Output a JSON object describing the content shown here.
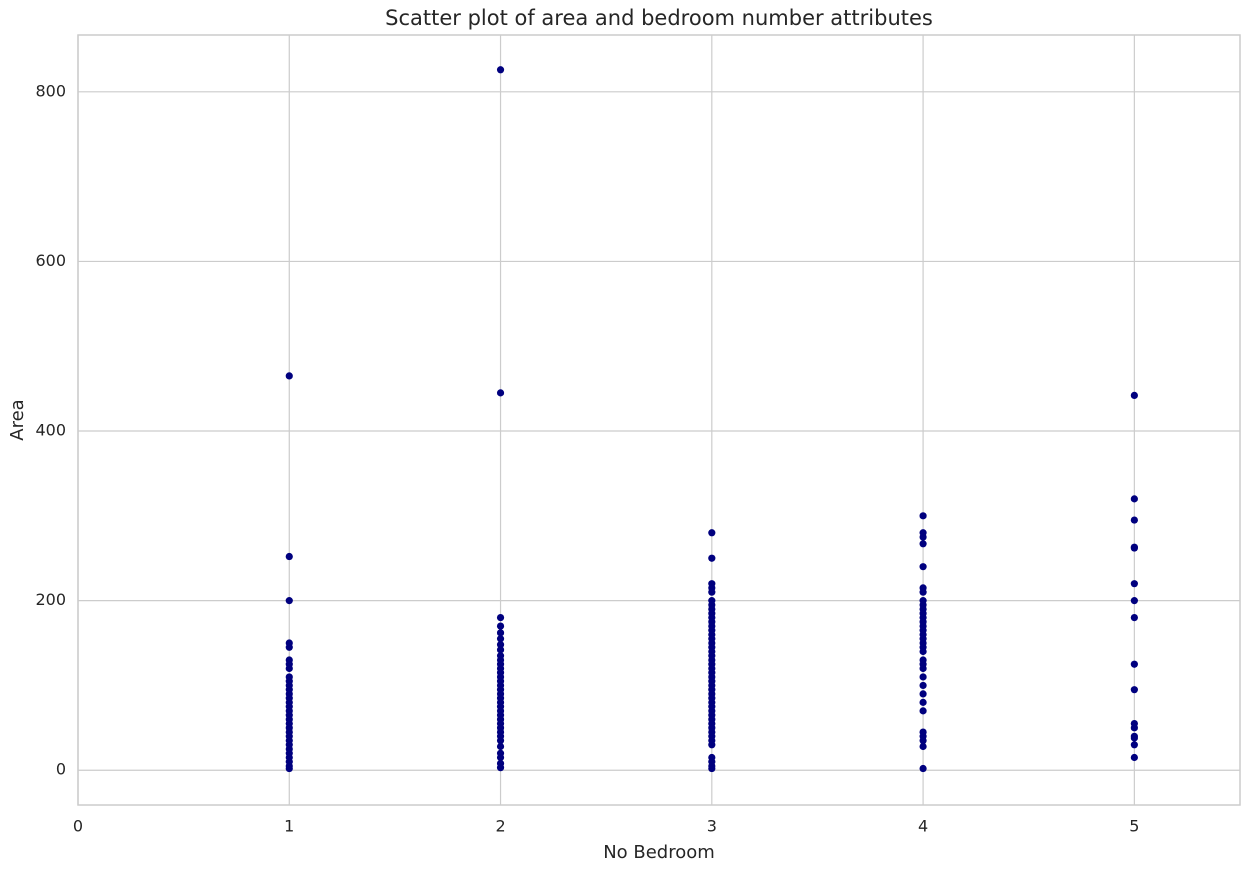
{
  "chart_data": {
    "type": "scatter",
    "title": "Scatter plot of area and bedroom number attributes",
    "x_label": "No Bedroom",
    "y_label": "Area",
    "color": "#00007f",
    "grid": true,
    "xlim": [
      0,
      5.5
    ],
    "ylim": [
      -41,
      867
    ],
    "xticks": [
      0,
      1,
      2,
      3,
      4,
      5
    ],
    "yticks": [
      0,
      200,
      400,
      600,
      800
    ],
    "x": [
      1,
      1,
      1,
      1,
      1,
      1,
      1,
      1,
      1,
      1,
      1,
      1,
      1,
      1,
      1,
      1,
      1,
      1,
      1,
      1,
      1,
      1,
      1,
      1,
      1,
      1,
      1,
      1,
      1,
      1,
      1,
      2,
      2,
      2,
      2,
      2,
      2,
      2,
      2,
      2,
      2,
      2,
      2,
      2,
      2,
      2,
      2,
      2,
      2,
      2,
      2,
      2,
      2,
      2,
      2,
      2,
      2,
      2,
      2,
      2,
      2,
      2,
      2,
      2,
      2,
      3,
      3,
      3,
      3,
      3,
      3,
      3,
      3,
      3,
      3,
      3,
      3,
      3,
      3,
      3,
      3,
      3,
      3,
      3,
      3,
      3,
      3,
      3,
      3,
      3,
      3,
      3,
      3,
      3,
      3,
      3,
      3,
      3,
      3,
      3,
      3,
      3,
      3,
      3,
      3,
      3,
      3,
      3,
      3,
      4,
      4,
      4,
      4,
      4,
      4,
      4,
      4,
      4,
      4,
      4,
      4,
      4,
      4,
      4,
      4,
      4,
      4,
      4,
      4,
      4,
      4,
      4,
      4,
      4,
      4,
      4,
      4,
      4,
      4,
      4,
      4,
      4,
      5,
      5,
      5,
      5,
      5,
      5,
      5,
      5,
      5,
      5,
      5,
      5,
      5,
      5,
      5,
      5
    ],
    "values": [
      465,
      252,
      200,
      150,
      145,
      130,
      125,
      120,
      110,
      105,
      100,
      95,
      90,
      85,
      80,
      75,
      70,
      65,
      60,
      55,
      50,
      45,
      40,
      35,
      30,
      25,
      20,
      15,
      10,
      5,
      2,
      826,
      445,
      180,
      170,
      162,
      155,
      148,
      142,
      135,
      130,
      125,
      120,
      115,
      110,
      105,
      100,
      95,
      90,
      85,
      80,
      75,
      70,
      65,
      60,
      55,
      50,
      45,
      40,
      35,
      28,
      20,
      15,
      8,
      3,
      280,
      250,
      220,
      215,
      210,
      200,
      195,
      190,
      185,
      180,
      175,
      170,
      165,
      160,
      155,
      150,
      145,
      140,
      135,
      130,
      125,
      120,
      115,
      110,
      105,
      100,
      95,
      90,
      85,
      80,
      75,
      70,
      65,
      60,
      55,
      50,
      45,
      40,
      35,
      30,
      15,
      10,
      5,
      2,
      300,
      280,
      275,
      267,
      240,
      215,
      210,
      200,
      195,
      190,
      185,
      180,
      175,
      170,
      165,
      160,
      155,
      150,
      145,
      140,
      130,
      125,
      120,
      110,
      100,
      90,
      80,
      70,
      45,
      40,
      35,
      28,
      2,
      442,
      320,
      295,
      263,
      262,
      220,
      200,
      180,
      125,
      95,
      55,
      50,
      40,
      38,
      30,
      15
    ]
  }
}
